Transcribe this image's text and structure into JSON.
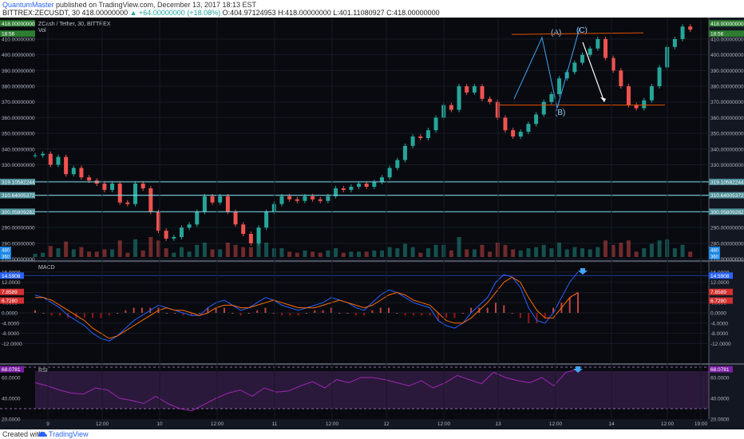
{
  "header": {
    "author": "QuantumMaster",
    "published": "published on TradingView.com, December 13, 2017 18:13 EST",
    "symbol_line": "BITTREX:ZECUSDT, 30  418.00000000",
    "change": "▲ +64.00000000 (+18.08%)",
    "ohlc": "O:404.97124953  H:418.00000000  L:401.11080927  C:418.00000000"
  },
  "footer": {
    "created_with": "Created with",
    "brand": "TradingView"
  },
  "chart_data": [
    {
      "type": "candlestick",
      "title": "ZCash / Tether, 30, BITTREX",
      "volume_label": "Vol",
      "ylim": [
        270,
        420
      ],
      "y_ticks": [
        "410.00000000",
        "400.00000000",
        "390.00000000",
        "380.00000000",
        "370.00000000",
        "360.00000000",
        "350.00000000",
        "340.00000000",
        "330.00000000",
        "320.00000000",
        "310.00000000",
        "300.00000000",
        "290.00000000",
        "280.00000000",
        "270.00000000"
      ],
      "x_ticks": [
        "9",
        "12:00",
        "10",
        "12:00",
        "11",
        "12:00",
        "12",
        "12:00",
        "13",
        "12:00",
        "14",
        "12:00",
        "19:00"
      ],
      "close_path": [
        [
          0,
          336
        ],
        [
          8,
          337
        ],
        [
          15,
          330
        ],
        [
          22,
          335
        ],
        [
          30,
          324
        ],
        [
          38,
          328
        ],
        [
          46,
          322
        ],
        [
          55,
          320
        ],
        [
          63,
          318
        ],
        [
          70,
          314
        ],
        [
          78,
          318
        ],
        [
          85,
          306
        ],
        [
          92,
          305
        ],
        [
          98,
          318
        ],
        [
          106,
          315
        ],
        [
          113,
          300
        ],
        [
          120,
          288
        ],
        [
          126,
          283
        ],
        [
          132,
          284
        ],
        [
          138,
          290
        ],
        [
          145,
          292
        ],
        [
          150,
          300
        ],
        [
          156,
          310
        ],
        [
          162,
          306
        ],
        [
          168,
          310
        ],
        [
          175,
          300
        ],
        [
          180,
          292
        ],
        [
          186,
          286
        ],
        [
          191,
          280
        ],
        [
          197,
          290
        ],
        [
          203,
          300
        ],
        [
          209,
          305
        ],
        [
          215,
          310
        ],
        [
          221,
          308
        ],
        [
          227,
          307
        ],
        [
          233,
          310
        ],
        [
          239,
          308
        ],
        [
          245,
          307
        ],
        [
          252,
          310
        ],
        [
          258,
          315
        ],
        [
          264,
          314
        ],
        [
          270,
          316
        ],
        [
          276,
          318
        ],
        [
          282,
          316
        ],
        [
          288,
          319
        ],
        [
          294,
          322
        ],
        [
          300,
          328
        ],
        [
          306,
          333
        ],
        [
          312,
          342
        ],
        [
          318,
          348
        ],
        [
          324,
          347
        ],
        [
          330,
          352
        ],
        [
          336,
          360
        ],
        [
          342,
          368
        ],
        [
          348,
          365
        ],
        [
          354,
          380
        ],
        [
          360,
          376
        ],
        [
          366,
          380
        ],
        [
          372,
          372
        ],
        [
          378,
          370
        ],
        [
          384,
          360
        ],
        [
          390,
          352
        ],
        [
          396,
          348
        ],
        [
          402,
          351
        ],
        [
          408,
          356
        ],
        [
          414,
          362
        ],
        [
          420,
          370
        ],
        [
          426,
          375
        ],
        [
          432,
          385
        ],
        [
          438,
          389
        ],
        [
          444,
          395
        ],
        [
          450,
          400
        ],
        [
          456,
          404
        ],
        [
          462,
          410
        ],
        [
          468,
          398
        ],
        [
          474,
          390
        ],
        [
          480,
          380
        ],
        [
          486,
          368
        ],
        [
          492,
          366
        ],
        [
          498,
          371
        ],
        [
          504,
          380
        ],
        [
          510,
          392
        ],
        [
          516,
          405
        ],
        [
          522,
          410
        ],
        [
          528,
          418
        ],
        [
          534,
          416
        ]
      ],
      "horizontal_levels": [
        {
          "label": "319.10582244",
          "value": 319.1
        },
        {
          "label": "310.64005372",
          "value": 310.6
        },
        {
          "label": "300.05809282",
          "value": 300.1
        }
      ],
      "price_tags": [
        {
          "label": "418.00000000",
          "value": 418
        },
        {
          "label": "18:56",
          "value": 416
        }
      ],
      "annotations": [
        "(A)",
        "(B)",
        "(C)"
      ],
      "volume_tags": [
        "480",
        "360"
      ],
      "colors": {
        "up": "#26a69a",
        "down": "#ef5350",
        "accent": "#e65100",
        "levels": "#80deea"
      }
    },
    {
      "type": "line",
      "title": "MACD",
      "ylim": [
        -16,
        16
      ],
      "y_ticks": [
        "16.0000",
        "12.0000",
        "8.0000",
        "4.0000",
        "0.0000",
        "-4.0000",
        "-8.0000",
        "-12.0000"
      ],
      "value_tags": [
        "14.5908",
        "7.8589",
        "6.7280"
      ],
      "series": [
        {
          "name": "",
          "color": "#2962ff",
          "values": [
            7,
            6,
            4,
            2,
            -1,
            -3,
            -5,
            -8,
            -10,
            -11,
            -9,
            -6,
            -3,
            -1,
            1,
            3,
            2,
            1,
            0,
            -1,
            -1,
            2,
            4,
            5,
            3,
            1,
            2,
            4,
            6,
            5,
            3,
            2,
            1,
            2,
            3,
            4,
            6,
            5,
            4,
            2,
            1,
            4,
            7,
            9,
            8,
            6,
            4,
            3,
            2,
            -3,
            -5,
            -6,
            -4,
            0,
            3,
            6,
            12,
            15,
            14,
            10,
            2,
            -3,
            -4,
            0,
            6,
            12,
            16
          ]
        },
        {
          "name": "",
          "color": "#ff6d00",
          "values": [
            6,
            6,
            5,
            3,
            1,
            -1,
            -3,
            -6,
            -8,
            -10,
            -9,
            -7,
            -5,
            -3,
            -1,
            1,
            2,
            1,
            1,
            0,
            -1,
            0,
            2,
            3,
            3,
            2,
            2,
            3,
            4,
            5,
            4,
            3,
            2,
            2,
            2,
            3,
            4,
            5,
            4,
            3,
            2,
            3,
            5,
            7,
            8,
            7,
            5,
            4,
            3,
            0,
            -3,
            -4,
            -4,
            -2,
            1,
            4,
            8,
            12,
            14,
            12,
            6,
            1,
            -2,
            -2,
            2,
            6,
            8
          ]
        }
      ]
    },
    {
      "type": "line",
      "title": "RSI",
      "ylim": [
        20,
        70
      ],
      "y_ticks": [
        "60.0000",
        "40.0000",
        "20.0000"
      ],
      "value_tag": "68.0781",
      "series": [
        {
          "name": "",
          "color": "#9c27b0",
          "values": [
            55,
            52,
            48,
            45,
            44,
            50,
            48,
            40,
            38,
            35,
            42,
            35,
            30,
            28,
            34,
            40,
            45,
            48,
            42,
            50,
            46,
            47,
            52,
            56,
            50,
            58,
            55,
            60,
            60,
            58,
            55,
            52,
            57,
            50,
            55,
            62,
            58,
            54,
            65,
            60,
            57,
            55,
            60,
            52,
            65,
            68
          ]
        }
      ]
    }
  ]
}
